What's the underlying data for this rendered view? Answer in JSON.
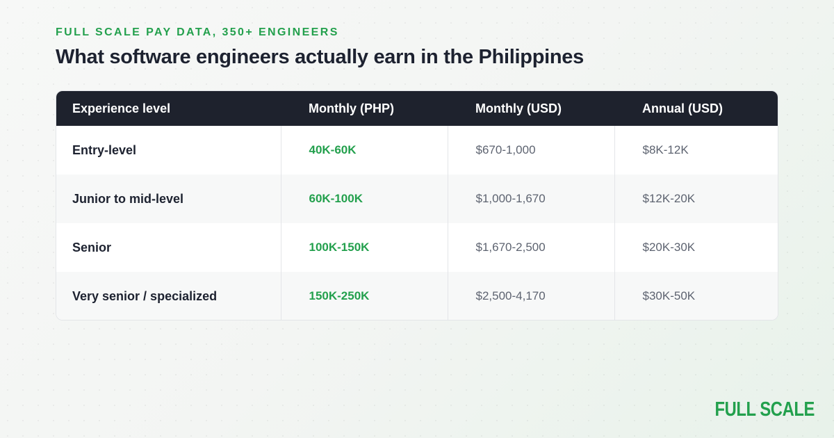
{
  "header": {
    "eyebrow": "FULL SCALE PAY DATA, 350+ ENGINEERS",
    "title": "What software engineers actually earn in the Philippines"
  },
  "table": {
    "columns": [
      "Experience level",
      "Monthly (PHP)",
      "Monthly (USD)",
      "Annual (USD)"
    ],
    "rows": [
      [
        "Entry-level",
        "40K-60K",
        "$670-1,000",
        "$8K-12K"
      ],
      [
        "Junior to mid-level",
        "60K-100K",
        "$1,000-1,670",
        "$12K-20K"
      ],
      [
        "Senior",
        "100K-150K",
        "$1,670-2,500",
        "$20K-30K"
      ],
      [
        "Very senior / specialized",
        "150K-250K",
        "$2,500-4,170",
        "$30K-50K"
      ]
    ]
  },
  "brand": {
    "logo_text": "FULL SCALE",
    "accent_color": "#23a04d",
    "header_bg_color": "#1e222d"
  }
}
